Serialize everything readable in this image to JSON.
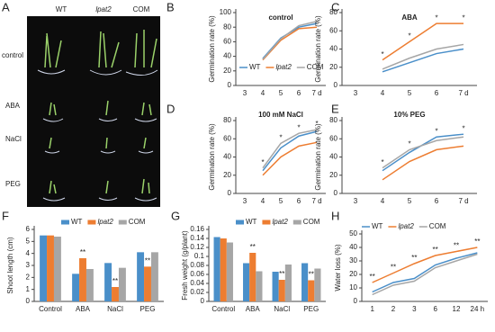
{
  "photo_panel": {
    "panel_label": "A",
    "columns": [
      "WT",
      "lpat2",
      "COM"
    ],
    "rows": [
      "control",
      "ABA",
      "NaCl",
      "PEG"
    ]
  },
  "chart_data": [
    {
      "type": "line",
      "panel_label": "B",
      "title": "control",
      "y_label": "Germination rate (%)",
      "categories": [
        "3",
        "4",
        "5",
        "6",
        "7 d"
      ],
      "ylim": [
        0,
        100
      ],
      "yticks": [
        0,
        20,
        40,
        60,
        80,
        100
      ],
      "legend": "lower right",
      "series": [
        {
          "name": "WT",
          "color": "#4a8fc9",
          "values": [
            null,
            37,
            65,
            80,
            85
          ]
        },
        {
          "name": "lpat2",
          "color": "#ed7d31",
          "values": [
            null,
            35,
            62,
            78,
            80
          ]
        },
        {
          "name": "COM",
          "color": "#a6a6a6",
          "values": [
            null,
            36,
            64,
            82,
            88
          ]
        }
      ]
    },
    {
      "type": "line",
      "panel_label": "C",
      "title": "ABA",
      "y_label": "Germination rate (%)",
      "categories": [
        "3",
        "4",
        "5",
        "6",
        "7 d"
      ],
      "ylim": [
        0,
        80
      ],
      "yticks": [
        0,
        20,
        40,
        60,
        80
      ],
      "significance": [
        null,
        "*",
        "*",
        "*",
        "*"
      ],
      "series": [
        {
          "name": "WT",
          "color": "#4a8fc9",
          "values": [
            null,
            15,
            25,
            35,
            40
          ]
        },
        {
          "name": "lpat2",
          "color": "#ed7d31",
          "values": [
            null,
            28,
            48,
            68,
            68
          ]
        },
        {
          "name": "COM",
          "color": "#a6a6a6",
          "values": [
            null,
            18,
            30,
            40,
            45
          ]
        }
      ]
    },
    {
      "type": "line",
      "panel_label": "D",
      "title": "100 mM NaCl",
      "y_label": "Germination rate (%)",
      "categories": [
        "3",
        "4",
        "5",
        "6",
        "7 d"
      ],
      "ylim": [
        0,
        80
      ],
      "yticks": [
        0,
        20,
        40,
        60,
        80
      ],
      "significance": [
        null,
        "*",
        "*",
        "*",
        "*"
      ],
      "series": [
        {
          "name": "WT",
          "color": "#4a8fc9",
          "values": [
            null,
            25,
            50,
            63,
            68
          ]
        },
        {
          "name": "lpat2",
          "color": "#ed7d31",
          "values": [
            null,
            20,
            40,
            52,
            56
          ]
        },
        {
          "name": "COM",
          "color": "#a6a6a6",
          "values": [
            null,
            28,
            55,
            66,
            70
          ]
        }
      ]
    },
    {
      "type": "line",
      "panel_label": "E",
      "title": "10% PEG",
      "y_label": "Germination rate (%)",
      "categories": [
        "3",
        "4",
        "5",
        "6",
        "7 d"
      ],
      "ylim": [
        0,
        80
      ],
      "yticks": [
        0,
        20,
        40,
        60,
        80
      ],
      "significance": [
        null,
        "*",
        "*",
        "*",
        "*"
      ],
      "series": [
        {
          "name": "WT",
          "color": "#4a8fc9",
          "values": [
            null,
            25,
            45,
            62,
            65
          ]
        },
        {
          "name": "lpat2",
          "color": "#ed7d31",
          "values": [
            null,
            15,
            35,
            48,
            52
          ]
        },
        {
          "name": "COM",
          "color": "#a6a6a6",
          "values": [
            null,
            28,
            48,
            58,
            62
          ]
        }
      ]
    },
    {
      "type": "bar",
      "panel_label": "F",
      "y_label": "Shoot length (cm)",
      "categories": [
        "Control",
        "ABA",
        "NaCl",
        "PEG"
      ],
      "ylim": [
        0,
        6
      ],
      "yticks": [
        0,
        1,
        2,
        3,
        4,
        5,
        6
      ],
      "legend": "top",
      "significance": [
        null,
        "**",
        "**",
        "**"
      ],
      "series": [
        {
          "name": "WT",
          "color": "#4a8fc9",
          "values": [
            5.5,
            2.3,
            3.2,
            4.1
          ]
        },
        {
          "name": "lpat2",
          "color": "#ed7d31",
          "values": [
            5.5,
            3.6,
            1.2,
            2.9
          ]
        },
        {
          "name": "COM",
          "color": "#a6a6a6",
          "values": [
            5.4,
            2.7,
            2.8,
            4.1
          ]
        }
      ]
    },
    {
      "type": "bar",
      "panel_label": "G",
      "y_label": "Fresh weight (g/plant)",
      "categories": [
        "Control",
        "ABA",
        "NaCl",
        "PEG"
      ],
      "ylim": [
        0,
        0.16
      ],
      "yticks": [
        0,
        0.02,
        0.04,
        0.06,
        0.08,
        0.1,
        0.12,
        0.14,
        0.16
      ],
      "legend": "top",
      "significance": [
        null,
        "**",
        "**",
        "**"
      ],
      "series": [
        {
          "name": "WT",
          "color": "#4a8fc9",
          "values": [
            0.143,
            0.085,
            0.066,
            0.085
          ]
        },
        {
          "name": "lpat2",
          "color": "#ed7d31",
          "values": [
            0.14,
            0.108,
            0.048,
            0.047
          ]
        },
        {
          "name": "COM",
          "color": "#a6a6a6",
          "values": [
            0.131,
            0.067,
            0.082,
            0.073
          ]
        }
      ]
    },
    {
      "type": "line",
      "panel_label": "H",
      "y_label": "Water loss (%)",
      "categories": [
        "1",
        "2",
        "3",
        "6",
        "12",
        "24 h"
      ],
      "ylim": [
        0,
        50
      ],
      "yticks": [
        0,
        10,
        20,
        30,
        40,
        50
      ],
      "legend": "top",
      "significance": [
        "**",
        "**",
        "**",
        "**",
        "**",
        "**"
      ],
      "series": [
        {
          "name": "WT",
          "color": "#4a8fc9",
          "values": [
            7,
            14,
            17,
            27,
            32,
            36
          ]
        },
        {
          "name": "lpat2",
          "color": "#ed7d31",
          "values": [
            14,
            21,
            28,
            34,
            37,
            40
          ]
        },
        {
          "name": "COM",
          "color": "#a6a6a6",
          "values": [
            5,
            12,
            15,
            25,
            30,
            35
          ]
        }
      ]
    }
  ]
}
